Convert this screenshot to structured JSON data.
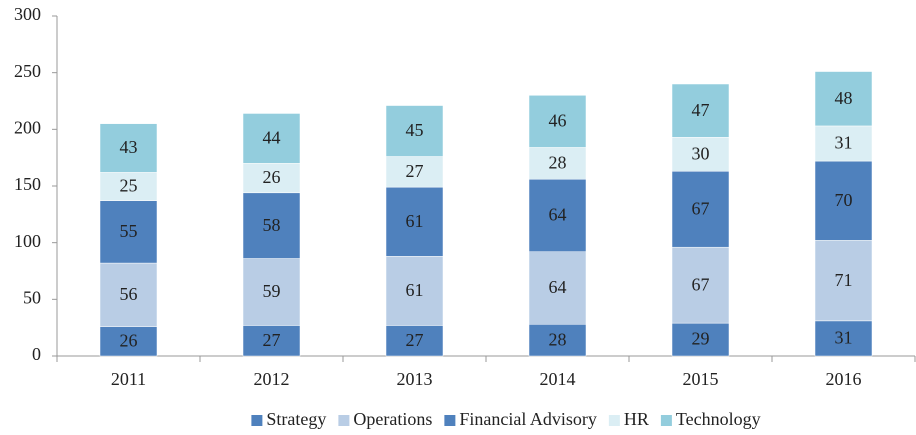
{
  "chart_data": {
    "type": "stacked_bar",
    "categories": [
      "2011",
      "2012",
      "2013",
      "2014",
      "2015",
      "2016"
    ],
    "series": [
      {
        "name": "Strategy",
        "color": "#4f81bd",
        "values": [
          26,
          27,
          27,
          28,
          29,
          31
        ]
      },
      {
        "name": "Operations",
        "color": "#b9cde5",
        "values": [
          56,
          59,
          61,
          64,
          67,
          71
        ]
      },
      {
        "name": "Financial Advisory",
        "color": "#4f81bd",
        "values": [
          55,
          58,
          61,
          64,
          67,
          70
        ]
      },
      {
        "name": "HR",
        "color": "#dbeef4",
        "values": [
          25,
          26,
          27,
          28,
          30,
          31
        ]
      },
      {
        "name": "Technology",
        "color": "#93cddd",
        "values": [
          43,
          44,
          45,
          46,
          47,
          48
        ]
      }
    ],
    "ylim": [
      0,
      300
    ],
    "yticks": [
      0,
      50,
      100,
      150,
      200,
      250,
      300
    ],
    "grid": false,
    "legend": "bottom"
  }
}
